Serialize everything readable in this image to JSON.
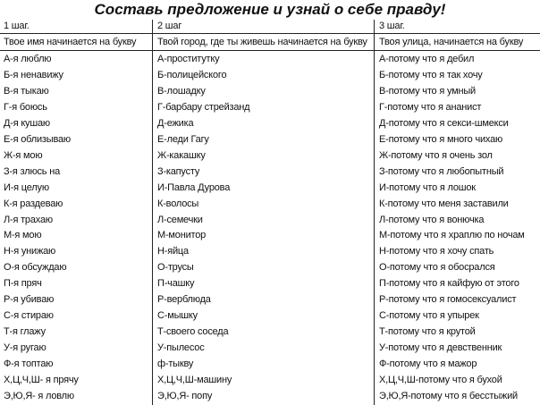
{
  "title": "Составь предложение и узнай о себе правду!",
  "columns": [
    {
      "step": "1 шаг.",
      "heading": "Твое имя начинается на букву",
      "rows": [
        "А-я люблю",
        "Б-я ненавижу",
        "В-я тыкаю",
        "Г-я боюсь",
        "Д-я кушаю",
        "Е-я облизываю",
        "Ж-я мою",
        "З-я злюсь на",
        "И-я целую",
        "К-я раздеваю",
        "Л-я трахаю",
        "М-я мою",
        "Н-я унижаю",
        "О-я обсуждаю",
        "П-я пряч",
        "Р-я убиваю",
        "С-я стираю",
        "Т-я глажу",
        "У-я ругаю",
        "Ф-я топтаю",
        "Х,Ц,Ч,Ш- я прячу",
        "Э,Ю,Я- я ловлю"
      ]
    },
    {
      "step": "2 шаг",
      "heading": "Твой город, где ты живешь начинается на букву",
      "rows": [
        "А-проститутку",
        "Б-полицейского",
        "В-лошадку",
        "Г-барбару стрейзанд",
        "Д-ежика",
        "Е-леди Гагу",
        "Ж-какашку",
        "З-капусту",
        "И-Павла Дурова",
        "К-волосы",
        "Л-семечки",
        "М-монитор",
        "Н-яйца",
        "О-трусы",
        "П-чашку",
        "Р-верблюда",
        "С-мышку",
        "Т-своего соседа",
        "У-пылесос",
        "ф-тыкву",
        "Х,Ц,Ч,Ш-машину",
        "Э,Ю,Я- попу"
      ]
    },
    {
      "step": "3 шаг.",
      "heading": "Твоя улица, начинается на букву",
      "rows": [
        "А-потому что я дебил",
        "Б-потому что я так хочу",
        "В-потому что я умный",
        "Г-потому что я ананист",
        "Д-потому что я секси-шмекси",
        "Е-потому что я много чихаю",
        "Ж-потому что я очень зол",
        "З-потому что я любопытный",
        "И-потому что я лошок",
        "К-потому что меня заставили",
        "Л-потому что я вонючка",
        "М-потому что я храплю по ночам",
        "Н-потому что я хочу спать",
        "О-потому что я обосрался",
        "П-потому что я кайфую от этого",
        "Р-потому что я гомосексуалист",
        "С-потому что я упырек",
        "Т-потому что я крутой",
        "У-потому что я девственник",
        "Ф-потому что я мажор",
        "Х,Ц,Ч,Ш-потому что я бухой",
        "Э,Ю,Я-потому что я бесстыжий"
      ]
    }
  ]
}
